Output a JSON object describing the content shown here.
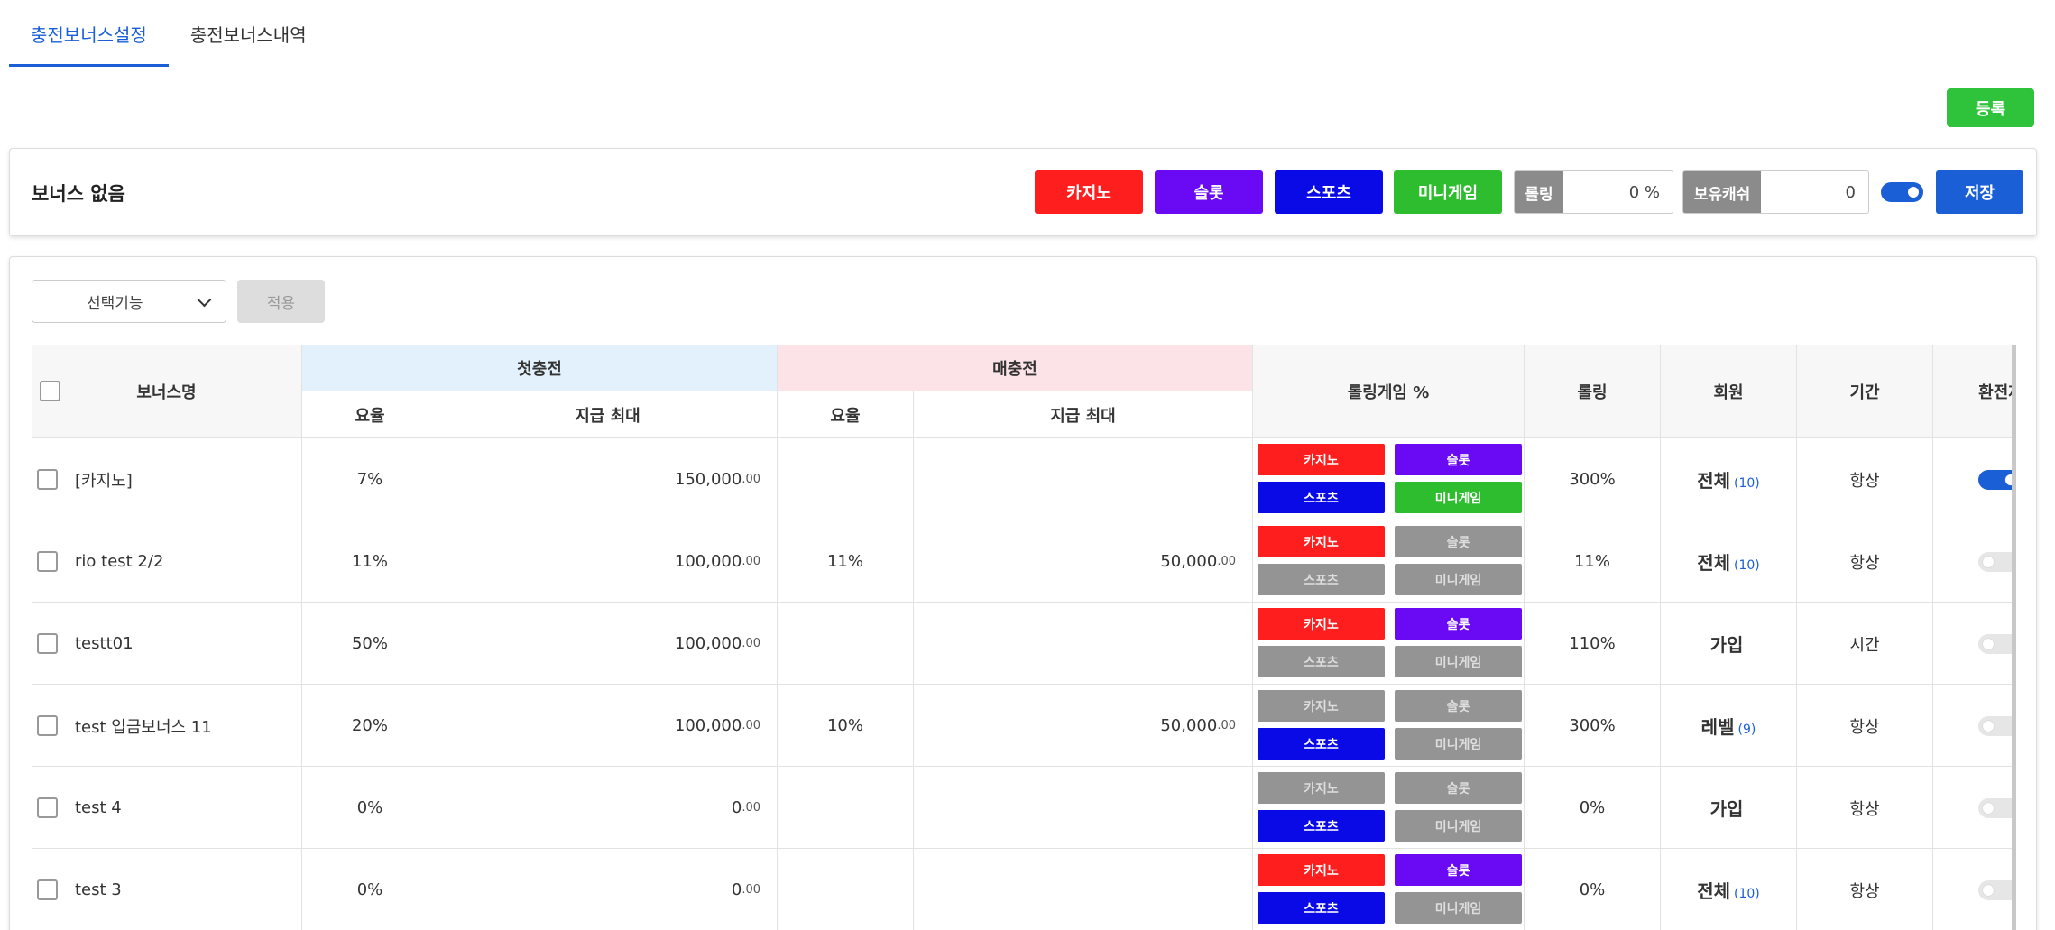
{
  "tabs": [
    {
      "label": "충전보너스설정",
      "active": true
    },
    {
      "label": "충전보너스내역",
      "active": false
    }
  ],
  "register_label": "등록",
  "nobonus": {
    "title": "보너스 없음",
    "games": [
      {
        "label": "카지노",
        "color": "#ff1e1e"
      },
      {
        "label": "슬롯",
        "color": "#6a0af5"
      },
      {
        "label": "스포츠",
        "color": "#0a0ae6"
      },
      {
        "label": "미니게임",
        "color": "#2ebd2e"
      }
    ],
    "rolling_label": "롤링",
    "rolling_value": "0 %",
    "cash_label": "보유캐쉬",
    "cash_value": "0",
    "toggle_on": true,
    "save_label": "저장"
  },
  "toolbar": {
    "select_label": "선택기능",
    "apply_label": "적용"
  },
  "table": {
    "headers": {
      "name": "보너스명",
      "first": "첫충전",
      "every": "매충전",
      "rate": "요율",
      "max": "지급 최대",
      "rolling_game": "롤링게임 %",
      "rolling": "롤링",
      "member": "회원",
      "period": "기간",
      "exchange": "환전제"
    },
    "game_labels": [
      "카지노",
      "슬롯",
      "스포츠",
      "미니게임"
    ],
    "game_colors": [
      "#ff1e1e",
      "#6a0af5",
      "#0a0ae6",
      "#2ebd2e"
    ],
    "rows": [
      {
        "name": "[카지노]",
        "first_rate": "7%",
        "first_max": "150,000",
        "first_dec": ".00",
        "every_rate": "",
        "every_max": "",
        "every_dec": "",
        "games_on": [
          true,
          true,
          true,
          true
        ],
        "rolling": "300%",
        "member": "전체",
        "member_count": "(10)",
        "period": "항상",
        "exchange_on": true
      },
      {
        "name": "rio test 2/2",
        "first_rate": "11%",
        "first_max": "100,000",
        "first_dec": ".00",
        "every_rate": "11%",
        "every_max": "50,000",
        "every_dec": ".00",
        "games_on": [
          true,
          false,
          false,
          false
        ],
        "rolling": "11%",
        "member": "전체",
        "member_count": "(10)",
        "period": "항상",
        "exchange_on": false
      },
      {
        "name": "testt01",
        "first_rate": "50%",
        "first_max": "100,000",
        "first_dec": ".00",
        "every_rate": "",
        "every_max": "",
        "every_dec": "",
        "games_on": [
          true,
          true,
          false,
          false
        ],
        "rolling": "110%",
        "member": "가입",
        "member_count": "",
        "period": "시간",
        "exchange_on": false
      },
      {
        "name": "test 입금보너스 11",
        "first_rate": "20%",
        "first_max": "100,000",
        "first_dec": ".00",
        "every_rate": "10%",
        "every_max": "50,000",
        "every_dec": ".00",
        "games_on": [
          false,
          false,
          true,
          false
        ],
        "rolling": "300%",
        "member": "레벨",
        "member_count": "(9)",
        "period": "항상",
        "exchange_on": false
      },
      {
        "name": "test 4",
        "first_rate": "0%",
        "first_max": "0",
        "first_dec": ".00",
        "every_rate": "",
        "every_max": "",
        "every_dec": "",
        "games_on": [
          false,
          false,
          true,
          false
        ],
        "rolling": "0%",
        "member": "가입",
        "member_count": "",
        "period": "항상",
        "exchange_on": false
      },
      {
        "name": "test 3",
        "first_rate": "0%",
        "first_max": "0",
        "first_dec": ".00",
        "every_rate": "",
        "every_max": "",
        "every_dec": "",
        "games_on": [
          true,
          true,
          true,
          false
        ],
        "rolling": "0%",
        "member": "전체",
        "member_count": "(10)",
        "period": "항상",
        "exchange_on": false
      }
    ]
  }
}
